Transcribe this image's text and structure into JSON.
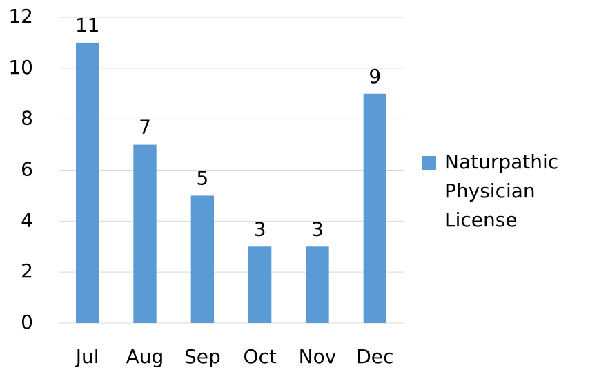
{
  "chart_data": {
    "type": "bar",
    "categories": [
      "Jul",
      "Aug",
      "Sep",
      "Oct",
      "Nov",
      "Dec"
    ],
    "series": [
      {
        "name": "Naturpathic Physician License",
        "color": "#5b9bd5",
        "values": [
          11,
          7,
          5,
          3,
          3,
          9
        ]
      }
    ],
    "ylim": [
      0,
      12
    ],
    "yticks": [
      0,
      2,
      4,
      6,
      8,
      10,
      12
    ],
    "grid": true,
    "legend": "right"
  }
}
